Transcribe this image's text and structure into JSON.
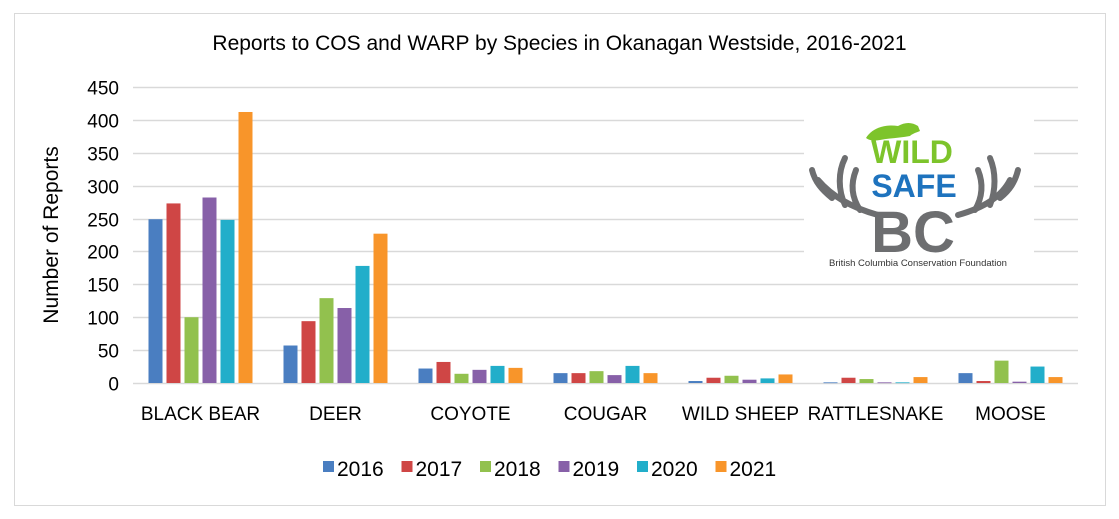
{
  "chart_data": {
    "type": "bar",
    "title": "Reports to COS and WARP by Species in Okanagan Westside, 2016-2021",
    "xlabel": "",
    "ylabel": "Number of Reports",
    "ylim": [
      0,
      450
    ],
    "yticks": [
      0,
      50,
      100,
      150,
      200,
      250,
      300,
      350,
      400,
      450
    ],
    "grid": true,
    "legend_position": "bottom",
    "categories": [
      "BLACK BEAR",
      "DEER",
      "COYOTE",
      "COUGAR",
      "WILD SHEEP",
      "RATTLESNAKE",
      "MOOSE"
    ],
    "series": [
      {
        "name": "2016",
        "color": "#4A7EC1",
        "values": [
          249,
          57,
          22,
          15,
          3,
          1,
          15
        ]
      },
      {
        "name": "2017",
        "color": "#CF4645",
        "values": [
          273,
          94,
          32,
          15,
          8,
          8,
          3
        ]
      },
      {
        "name": "2018",
        "color": "#92C14E",
        "values": [
          100,
          129,
          14,
          18,
          11,
          6,
          34
        ]
      },
      {
        "name": "2019",
        "color": "#8760A8",
        "values": [
          282,
          114,
          20,
          12,
          5,
          1,
          2
        ]
      },
      {
        "name": "2020",
        "color": "#22AECA",
        "values": [
          248,
          178,
          26,
          26,
          7,
          1,
          25
        ]
      },
      {
        "name": "2021",
        "color": "#F8952A",
        "values": [
          412,
          227,
          23,
          15,
          13,
          9,
          9
        ]
      }
    ]
  },
  "logo": {
    "line1": "WILD",
    "line2": "SAFE",
    "line3": "BC",
    "caption": "British Columbia Conservation Foundation",
    "colors": {
      "green": "#7DC42B",
      "blue": "#1E73BE",
      "gray": "#6D6E70"
    }
  }
}
